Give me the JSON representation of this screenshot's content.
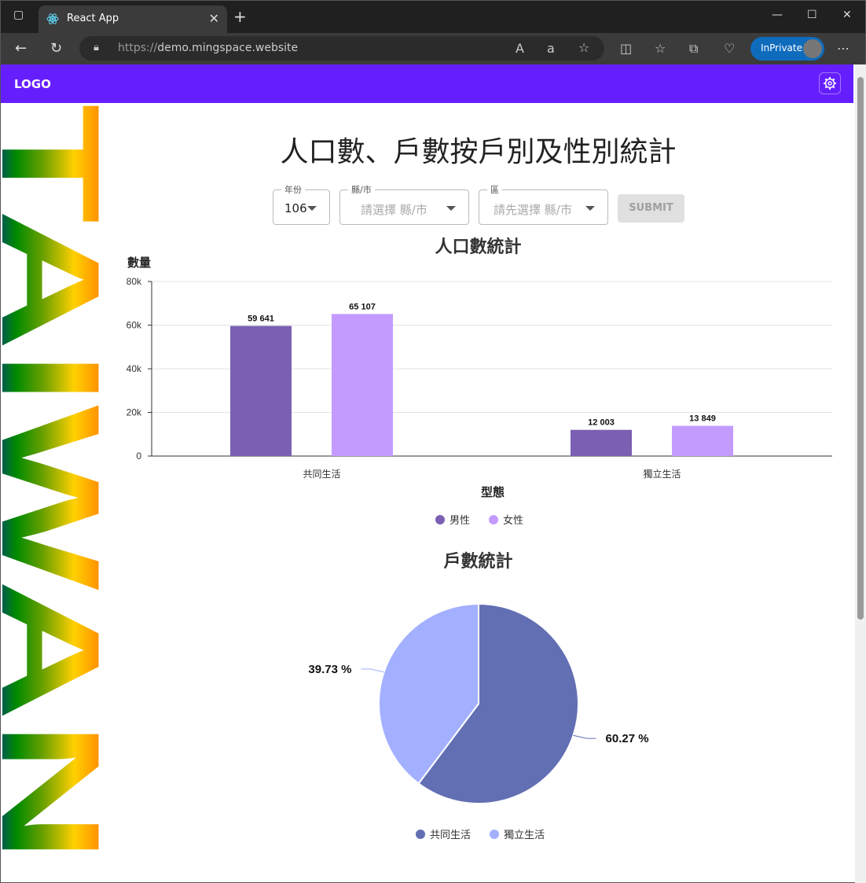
{
  "browser": {
    "tab_title": "React App",
    "url_prefix": "https://",
    "url_host": "demo.mingspace.website",
    "inprivate_label": "InPrivate"
  },
  "app": {
    "logo": "LOGO",
    "side_banner": "TAIWAN"
  },
  "page": {
    "title": "人口數、戶數按戶別及性別統計"
  },
  "filters": {
    "year": {
      "label": "年份",
      "value": "106"
    },
    "county": {
      "label": "縣/市",
      "placeholder": "請選擇 縣/市"
    },
    "district": {
      "label": "區",
      "placeholder": "請先選擇 縣/市"
    },
    "submit_label": "SUBMIT"
  },
  "chart_data": [
    {
      "type": "bar",
      "title": "人口數統計",
      "ylabel": "數量",
      "xlabel": "型態",
      "categories": [
        "共同生活",
        "獨立生活"
      ],
      "ylim": [
        0,
        80000
      ],
      "yticks": [
        "0",
        "20k",
        "40k",
        "60k",
        "80k"
      ],
      "series": [
        {
          "name": "男性",
          "values": [
            59641,
            12003
          ],
          "labels": [
            "59 641",
            "12 003"
          ],
          "color": "#7b5fb3"
        },
        {
          "name": "女性",
          "values": [
            65107,
            13849
          ],
          "labels": [
            "65 107",
            "13 849"
          ],
          "color": "#c39bff"
        }
      ],
      "grid": true,
      "legend": "bottom"
    },
    {
      "type": "pie",
      "title": "戶數統計",
      "slices": [
        {
          "name": "共同生活",
          "value": 60.27,
          "label": "60.27 %",
          "color": "#626fb3"
        },
        {
          "name": "獨立生活",
          "value": 39.73,
          "label": "39.73 %",
          "color": "#a3b0ff"
        }
      ],
      "legend": "bottom"
    }
  ]
}
